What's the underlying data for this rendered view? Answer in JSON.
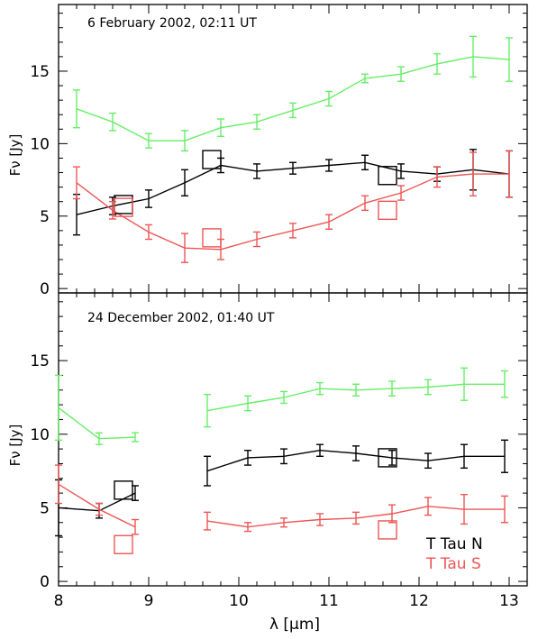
{
  "chart_data": [
    {
      "type": "line",
      "title": "6 February 2002, 02:11 UT",
      "ylabel": "Fν [Jy]",
      "xlim": [
        8,
        13.2
      ],
      "ylim": [
        -0.3,
        19.6
      ],
      "yticks": [
        0,
        5,
        10,
        15
      ],
      "series": [
        {
          "color": "#66ee66",
          "x": [
            8.2,
            8.6,
            9.0,
            9.4,
            9.8,
            10.2,
            10.6,
            11.0,
            11.4,
            11.8,
            12.2,
            12.6,
            13.0
          ],
          "y": [
            12.4,
            11.5,
            10.2,
            10.2,
            11.1,
            11.5,
            12.3,
            13.1,
            14.5,
            14.8,
            15.5,
            16.0,
            15.8
          ],
          "err": [
            1.3,
            0.6,
            0.5,
            0.7,
            0.6,
            0.5,
            0.5,
            0.5,
            0.3,
            0.5,
            0.7,
            1.4,
            1.5
          ]
        },
        {
          "color": "#000000",
          "x": [
            8.2,
            8.6,
            9.0,
            9.4,
            9.8,
            10.2,
            10.6,
            11.0,
            11.4,
            11.8,
            12.2,
            12.6,
            13.0
          ],
          "y": [
            5.1,
            5.7,
            6.2,
            7.3,
            8.5,
            8.1,
            8.3,
            8.5,
            8.7,
            8.1,
            7.9,
            8.2,
            7.9
          ],
          "err": [
            1.4,
            0.6,
            0.6,
            0.9,
            0.5,
            0.5,
            0.4,
            0.4,
            0.5,
            0.5,
            0.5,
            1.4,
            1.6
          ]
        },
        {
          "color": "#ee5555",
          "x": [
            8.2,
            8.6,
            9.0,
            9.4,
            9.8,
            10.2,
            10.6,
            11.0,
            11.4,
            11.8,
            12.2,
            12.6,
            13.0
          ],
          "y": [
            7.3,
            5.4,
            3.9,
            2.8,
            2.7,
            3.4,
            4.0,
            4.6,
            5.9,
            6.6,
            7.7,
            7.9,
            7.9
          ],
          "err": [
            1.1,
            0.6,
            0.5,
            1.0,
            0.7,
            0.5,
            0.5,
            0.5,
            0.5,
            0.5,
            0.7,
            1.5,
            1.6
          ]
        }
      ],
      "squares": [
        {
          "color": "#000000",
          "x": 8.72,
          "y": 5.8
        },
        {
          "color": "#000000",
          "x": 9.7,
          "y": 8.9
        },
        {
          "color": "#000000",
          "x": 11.65,
          "y": 7.8
        },
        {
          "color": "#ee5555",
          "x": 8.72,
          "y": 5.6
        },
        {
          "color": "#ee5555",
          "x": 9.7,
          "y": 3.5
        },
        {
          "color": "#ee5555",
          "x": 11.65,
          "y": 5.4
        }
      ]
    },
    {
      "type": "line",
      "title": "24 December 2002, 01:40 UT",
      "ylabel": "Fν [Jy]",
      "xlabel": "λ [μm]",
      "xlim": [
        8,
        13.2
      ],
      "ylim": [
        -0.3,
        19.6
      ],
      "yticks": [
        0,
        5,
        10,
        15
      ],
      "xticks": [
        8,
        9,
        10,
        11,
        12,
        13
      ],
      "legend": [
        {
          "label": "T Tau N",
          "color": "#000000"
        },
        {
          "label": "T Tau S",
          "color": "#ee5555"
        }
      ],
      "segments": [
        {
          "color": "#66ee66",
          "x": [
            8.0,
            8.45,
            8.85
          ],
          "y": [
            11.8,
            9.7,
            9.8
          ],
          "err": [
            2.2,
            0.4,
            0.3
          ]
        },
        {
          "color": "#66ee66",
          "x": [
            9.65,
            10.1,
            10.5,
            10.9,
            11.3,
            11.7,
            12.1,
            12.5,
            12.95
          ],
          "y": [
            11.6,
            12.1,
            12.5,
            13.1,
            13.0,
            13.1,
            13.2,
            13.4,
            13.4
          ],
          "err": [
            1.1,
            0.5,
            0.4,
            0.4,
            0.4,
            0.5,
            0.5,
            1.1,
            0.9
          ]
        },
        {
          "color": "#000000",
          "x": [
            8.0,
            8.45,
            8.85
          ],
          "y": [
            5.0,
            4.8,
            6.0
          ],
          "err": [
            1.9,
            0.5,
            0.5
          ]
        },
        {
          "color": "#000000",
          "x": [
            9.65,
            10.1,
            10.5,
            10.9,
            11.3,
            11.7,
            12.1,
            12.5,
            12.95
          ],
          "y": [
            7.5,
            8.4,
            8.5,
            8.9,
            8.7,
            8.4,
            8.2,
            8.5,
            8.5
          ],
          "err": [
            1.0,
            0.5,
            0.5,
            0.4,
            0.5,
            0.5,
            0.5,
            0.8,
            1.1
          ]
        },
        {
          "color": "#ee5555",
          "x": [
            8.0,
            8.45,
            8.85
          ],
          "y": [
            6.6,
            4.9,
            3.7
          ],
          "err": [
            1.3,
            0.4,
            0.5
          ]
        },
        {
          "color": "#ee5555",
          "x": [
            9.65,
            10.1,
            10.5,
            10.9,
            11.3,
            11.7,
            12.1,
            12.5,
            12.95
          ],
          "y": [
            4.1,
            3.7,
            4.0,
            4.2,
            4.3,
            4.6,
            5.1,
            4.9,
            4.9
          ],
          "err": [
            0.6,
            0.3,
            0.3,
            0.4,
            0.4,
            0.6,
            0.6,
            1.0,
            0.9
          ]
        }
      ],
      "squares": [
        {
          "color": "#000000",
          "x": 8.72,
          "y": 6.2
        },
        {
          "color": "#000000",
          "x": 11.65,
          "y": 8.4
        },
        {
          "color": "#ee5555",
          "x": 8.72,
          "y": 2.5
        },
        {
          "color": "#ee5555",
          "x": 11.65,
          "y": 3.5
        }
      ]
    }
  ]
}
